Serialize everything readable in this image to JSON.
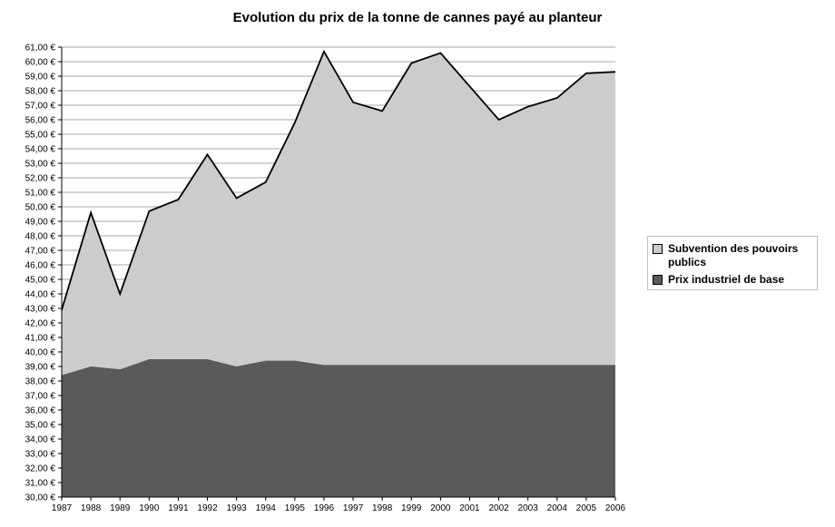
{
  "chart_data": {
    "type": "area",
    "title": "Evolution du prix de la tonne de cannes payé au planteur",
    "x": [
      "1987",
      "1988",
      "1989",
      "1990",
      "1991",
      "1992",
      "1993",
      "1994",
      "1995",
      "1996",
      "1997",
      "1998",
      "1999",
      "2000",
      "2001",
      "2002",
      "2003",
      "2004",
      "2005",
      "2006"
    ],
    "series": [
      {
        "name": "Prix industriel de base",
        "color": "#5a5a5a",
        "values": [
          38.4,
          39.0,
          38.8,
          39.5,
          39.5,
          39.5,
          39.0,
          39.4,
          39.4,
          39.1,
          39.1,
          39.1,
          39.1,
          39.1,
          39.1,
          39.1,
          39.1,
          39.1,
          39.1,
          39.1
        ]
      },
      {
        "name": "Subvention des pouvoirs publics",
        "color": "#cccccc",
        "totals": [
          42.9,
          49.6,
          44.0,
          49.7,
          50.5,
          53.6,
          50.6,
          51.7,
          55.8,
          60.7,
          57.2,
          56.6,
          59.9,
          60.6,
          58.3,
          56.0,
          56.9,
          57.5,
          59.2,
          59.3
        ]
      }
    ],
    "ylim": [
      30,
      61
    ],
    "ytick_step": 1,
    "ytick_suffix": " €",
    "grid": true,
    "legend_position": "right",
    "legend": [
      "Subvention des pouvoirs publics",
      "Prix industriel de base"
    ]
  }
}
